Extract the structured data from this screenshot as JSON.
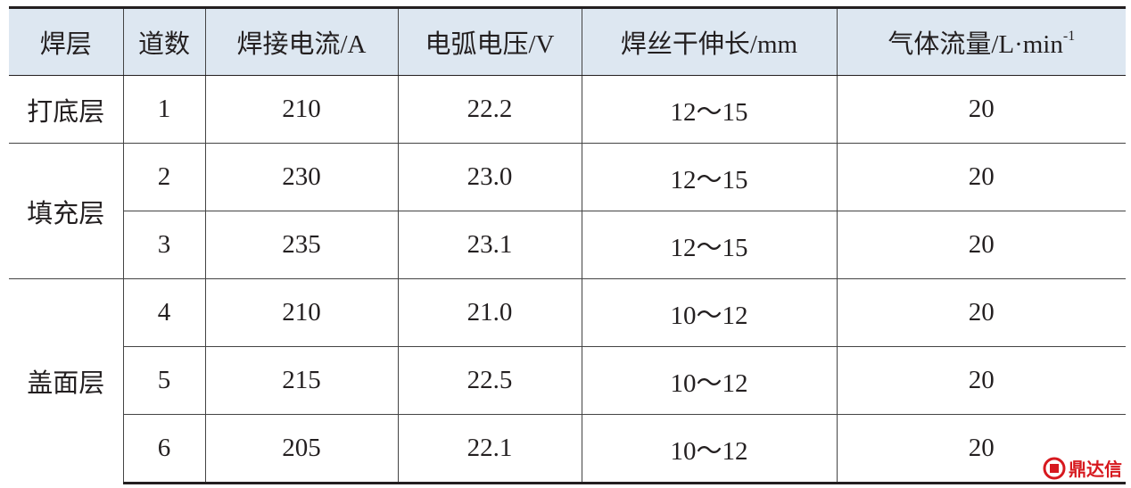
{
  "table": {
    "header": [
      "焊层",
      "道数",
      "焊接电流/A",
      "电弧电压/V",
      "焊丝干伸长/mm",
      "气体流量/L·min"
    ],
    "header_sup": "-1",
    "groups": [
      {
        "layer": "打底层",
        "rows": [
          [
            "1",
            "210",
            "22.2",
            "12～15",
            "20"
          ]
        ]
      },
      {
        "layer": "填充层",
        "rows": [
          [
            "2",
            "230",
            "23.0",
            "12～15",
            "20"
          ],
          [
            "3",
            "235",
            "23.1",
            "12～15",
            "20"
          ]
        ]
      },
      {
        "layer": "盖面层",
        "rows": [
          [
            "4",
            "210",
            "21.0",
            "10～12",
            "20"
          ],
          [
            "5",
            "215",
            "22.5",
            "10～12",
            "20"
          ],
          [
            "6",
            "205",
            "22.1",
            "10～12",
            "20"
          ]
        ]
      }
    ]
  },
  "watermark": "鼎达信"
}
